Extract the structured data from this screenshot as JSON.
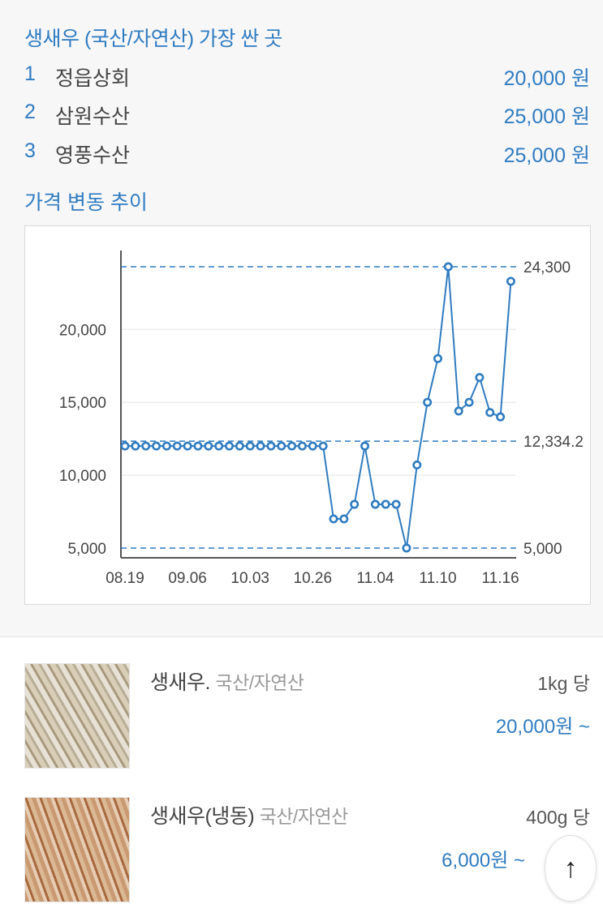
{
  "cheapest": {
    "title": "생새우 (국산/자연산) 가장 싼 곳",
    "shops": [
      {
        "rank": "1",
        "name": "정읍상회",
        "price": "20,000 원"
      },
      {
        "rank": "2",
        "name": "삼원수산",
        "price": "25,000 원"
      },
      {
        "rank": "3",
        "name": "영풍수산",
        "price": "25,000 원"
      }
    ]
  },
  "trend": {
    "title": "가격 변동 추이"
  },
  "chart_data": {
    "type": "line",
    "title": "",
    "xlabel": "",
    "ylabel": "",
    "x_tick_labels": [
      {
        "index": 0,
        "label": "08.19"
      },
      {
        "index": 6,
        "label": "09.06"
      },
      {
        "index": 12,
        "label": "10.03"
      },
      {
        "index": 18,
        "label": "10.26"
      },
      {
        "index": 24,
        "label": "11.04"
      },
      {
        "index": 30,
        "label": "11.10"
      },
      {
        "index": 36,
        "label": "11.16"
      }
    ],
    "y_ticks": [
      {
        "value": 5000,
        "label": "5,000"
      },
      {
        "value": 10000,
        "label": "10,000"
      },
      {
        "value": 15000,
        "label": "15,000"
      },
      {
        "value": 20000,
        "label": "20,000"
      }
    ],
    "ylim": [
      5000,
      24300
    ],
    "grid": true,
    "values": [
      12000,
      12000,
      12000,
      12000,
      12000,
      12000,
      12000,
      12000,
      12000,
      12000,
      12000,
      12000,
      12000,
      12000,
      12000,
      12000,
      12000,
      12000,
      12000,
      12000,
      7000,
      7000,
      8000,
      12000,
      8000,
      8000,
      8000,
      5000,
      10700,
      15000,
      18000,
      24300,
      14400,
      15000,
      16700,
      14300,
      14000,
      23300
    ],
    "reference_lines": [
      {
        "value": 24300,
        "label": "24,300"
      },
      {
        "value": 12334.2,
        "label": "12,334.2"
      },
      {
        "value": 5000,
        "label": "5,000"
      }
    ],
    "color": "#2f7cc1"
  },
  "products": [
    {
      "name": "생새우.",
      "origin": "국산/자연산",
      "unit": "1kg 당",
      "price": "20,000원 ~"
    },
    {
      "name": "생새우(냉동)",
      "origin": "국산/자연산",
      "unit": "400g 당",
      "price": "6,000원 ~"
    }
  ],
  "scroll_top": {
    "icon": "arrow-up-icon",
    "glyph": "↑"
  }
}
